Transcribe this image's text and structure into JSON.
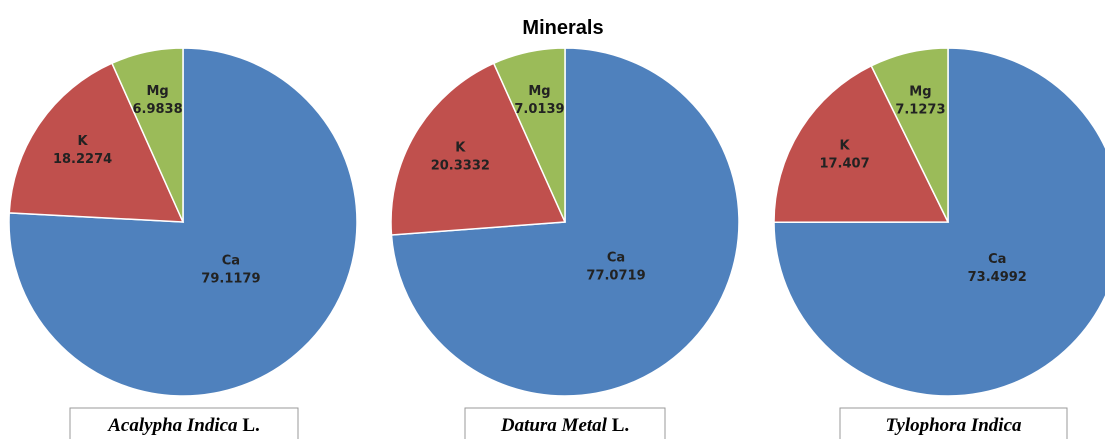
{
  "title": "Minerals",
  "chart_data": [
    {
      "type": "pie",
      "species": "Acalypha Indica",
      "authority": "L.",
      "categories": [
        "Ca",
        "K",
        "Mg"
      ],
      "values": [
        79.1179,
        18.2274,
        6.9838
      ],
      "colors": [
        "#4f81bd",
        "#c0504d",
        "#9bbb59"
      ]
    },
    {
      "type": "pie",
      "species": "Datura Metal",
      "authority": "L.",
      "categories": [
        "Ca",
        "K",
        "Mg"
      ],
      "values": [
        77.0719,
        20.3332,
        7.0139
      ],
      "colors": [
        "#4f81bd",
        "#c0504d",
        "#9bbb59"
      ]
    },
    {
      "type": "pie",
      "species": "Tylophora Indica",
      "categories": [
        "Ca",
        "K",
        "Mg"
      ],
      "values": [
        73.4992,
        17.407,
        7.1273
      ],
      "colors": [
        "#4f81bd",
        "#c0504d",
        "#9bbb59"
      ]
    }
  ]
}
